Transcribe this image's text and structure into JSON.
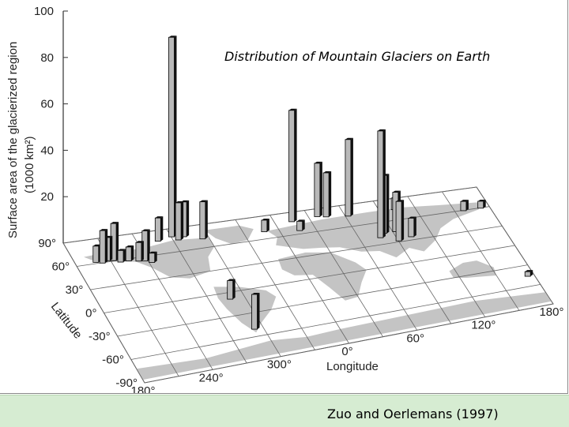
{
  "chart_data": {
    "type": "bar",
    "title": "Distribution of Mountain Glaciers on Earth",
    "zlabel_line1": "Surface area of the glacierized region",
    "zlabel_line2": "(1000 km²)",
    "zlim": [
      0,
      100
    ],
    "z_ticks": [
      "100",
      "80",
      "60",
      "40",
      "20"
    ],
    "lat_label": "Latitude",
    "lat_ticks": [
      "90°",
      "60°",
      "30°",
      "0°",
      "-30°",
      "-60°",
      "-90°"
    ],
    "lon_label": "Longitude",
    "lon_ticks": [
      "180°",
      "240°",
      "300°",
      "0°",
      "60°",
      "120°",
      "180°"
    ],
    "colors": {
      "bar_face": "#b9b9b9",
      "bar_side": "#111111",
      "land": "#c4c4c4",
      "grid": "#555555"
    },
    "bars": [
      {
        "lon": 195,
        "lat": 62,
        "value": 7
      },
      {
        "lon": 200,
        "lat": 60,
        "value": 14
      },
      {
        "lon": 205,
        "lat": 62,
        "value": 10
      },
      {
        "lon": 210,
        "lat": 61,
        "value": 16
      },
      {
        "lon": 215,
        "lat": 58,
        "value": 5
      },
      {
        "lon": 222,
        "lat": 58,
        "value": 6
      },
      {
        "lon": 230,
        "lat": 56,
        "value": 8
      },
      {
        "lon": 235,
        "lat": 55,
        "value": 13
      },
      {
        "lon": 240,
        "lat": 52,
        "value": 4
      },
      {
        "lon": 255,
        "lat": 77,
        "value": 10
      },
      {
        "lon": 268,
        "lat": 80,
        "value": 86
      },
      {
        "lon": 272,
        "lat": 75,
        "value": 16
      },
      {
        "lon": 278,
        "lat": 78,
        "value": 15
      },
      {
        "lon": 292,
        "lat": 72,
        "value": 16
      },
      {
        "lon": 285,
        "lat": -8,
        "value": 8
      },
      {
        "lon": 290,
        "lat": -50,
        "value": 15
      },
      {
        "lon": 345,
        "lat": 70,
        "value": 5
      },
      {
        "lon": 12,
        "lat": 78,
        "value": 48
      },
      {
        "lon": 14,
        "lat": 65,
        "value": 4
      },
      {
        "lon": 35,
        "lat": 80,
        "value": 23
      },
      {
        "lon": 42,
        "lat": 78,
        "value": 19
      },
      {
        "lon": 60,
        "lat": 75,
        "value": 33
      },
      {
        "lon": 75,
        "lat": 40,
        "value": 46
      },
      {
        "lon": 80,
        "lat": 45,
        "value": 25
      },
      {
        "lon": 88,
        "lat": 32,
        "value": 17
      },
      {
        "lon": 90,
        "lat": 45,
        "value": 17
      },
      {
        "lon": 100,
        "lat": 35,
        "value": 8
      },
      {
        "lon": 100,
        "lat": 75,
        "value": 5
      },
      {
        "lon": 155,
        "lat": 60,
        "value": 4
      },
      {
        "lon": 170,
        "lat": 60,
        "value": 3
      },
      {
        "lon": 172,
        "lat": -45,
        "value": 2
      }
    ]
  },
  "source_credit": "Zuo and Oerlemans (1997)"
}
